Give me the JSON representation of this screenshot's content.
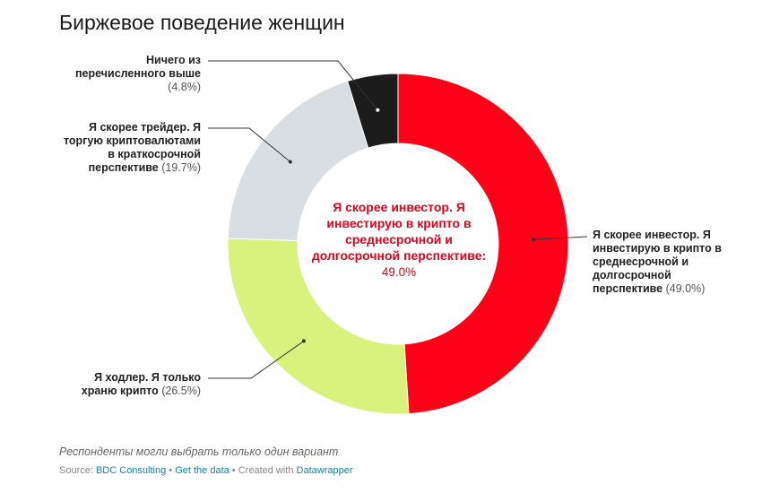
{
  "title": "Биржевое поведение женщин",
  "note": "Респонденты могли выбрать только один вариант",
  "source": {
    "prefix": "Source: ",
    "source_link": "BDC Consulting",
    "sep1": " • ",
    "data_link": "Get the data",
    "sep2": " • Created with ",
    "tool_link": "Datawrapper"
  },
  "center_label": {
    "name": "Я скорее инвестор. Я инвестирую в крипто в среднесрочной и долгосрочной перспективе:",
    "value": "49.0%"
  },
  "chart_data": {
    "type": "pie",
    "donut": true,
    "unit": "%",
    "series": [
      {
        "name": "Я скорее инвестор. Я инвестирую в крипто в среднесрочной и долгосрочной перспективе",
        "value": 49.0,
        "color": "#ff0019",
        "label_pct": "(49.0%)"
      },
      {
        "name": "Я ходлер. Я только храню крипто",
        "value": 26.5,
        "color": "#d8f27d",
        "label_pct": "(26.5%)"
      },
      {
        "name": "Я скорее трейдер. Я торгую криптовалютами в краткосрочной перспективе",
        "value": 19.7,
        "color": "#d8dee2",
        "label_pct": "(19.7%)"
      },
      {
        "name": "Ничего из перечисленного выше",
        "value": 4.8,
        "color": "#1c1c1c",
        "label_pct": "(4.8%)"
      }
    ]
  }
}
